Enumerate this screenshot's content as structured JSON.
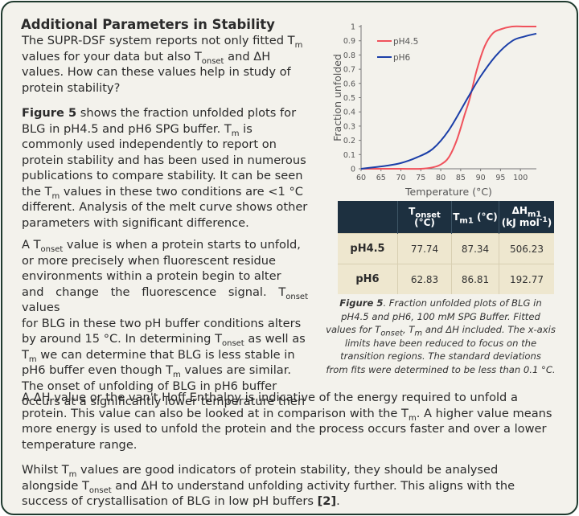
{
  "title": "Additional Parameters in Stability",
  "para1": {
    "l1a": "The SUPR-DSF system reports not only fitted T",
    "l1s": "m",
    "l2a": "values for your data but also T",
    "l2s": "onset",
    "l2b": " and ΔH",
    "l3": "values. How can these values help in study of",
    "l4": "protein stability?"
  },
  "para2": {
    "l1bold": "Figure 5",
    "l1": " shows the fraction unfolded plots for",
    "l2a": "BLG in pH4.5 and pH6 SPG buffer. T",
    "l2s": "m",
    "l2b": " is",
    "l3": "commonly used independently to report on",
    "l4": "protein stability and has been used in numerous",
    "l5": "publications to compare stability. It can be seen",
    "l6a": "the T",
    "l6s": "m",
    "l6b": " values in these two conditions are <1 °C",
    "l7": "different. Analysis of the melt curve shows other",
    "l8": "parameters with significant difference."
  },
  "para3": {
    "l1a": "A T",
    "l1s": "onset",
    "l1b": " value is when a protein starts to unfold,",
    "l2": "or more precisely when fluorescent residue",
    "l3": "environments within a protein begin to alter",
    "l4a": "and change the fluorescence signal. T",
    "l4s": "onset",
    "l4b": " values",
    "l5": "for BLG in these two pH buffer conditions alters",
    "l6a": "by around 15 °C. In determining T",
    "l6s": "onset",
    "l6b": " as well as",
    "l7a": "T",
    "l7s": "m",
    "l7b": " we can determine that BLG is less stable in",
    "l8": "pH6 buffer even though T",
    "l8s": "m",
    "l8b": " values are similar.",
    "l9": "The onset of unfolding of BLG in pH6 buffer",
    "l10": "occurs at a significantly lower temperature then"
  },
  "para4": {
    "l1": "A ΔH value or the van't Hoff Enthalpy is indicative of the energy required to unfold a",
    "l2a": "protein. This value can also be looked at in comparison with the T",
    "l2s": "m",
    "l2b": ". A higher value means",
    "l3": "more energy is used to unfold the protein and the process occurs faster and over a lower",
    "l4": "temperature range."
  },
  "para5": {
    "l1a": "Whilst T",
    "l1s": "m",
    "l1b": " values are good indicators of protein stability, they should be analysed",
    "l2a": "alongside T",
    "l2s": "onset",
    "l2b": " and ΔH to understand unfolding activity further. This aligns with the",
    "l3a": "success of crystallisation of BLG in low pH buffers ",
    "l3bold": "[2]",
    "l3b": "."
  },
  "table": {
    "h_onset_a": "T",
    "h_onset_s": "onset",
    "h_onset_b": " (°C)",
    "h_tm_a": "T",
    "h_tm_s": "m1",
    "h_tm_b": " (°C)",
    "h_dh_a": "ΔH",
    "h_dh_s": "m1",
    "h_dh_b": "(kJ mol",
    "h_dh_sup": "-1",
    "h_dh_c": ")",
    "rows": [
      {
        "label": "pH4.5",
        "tonset": "77.74",
        "tm": "87.34",
        "dh": "506.23"
      },
      {
        "label": "pH6",
        "tonset": "62.83",
        "tm": "86.81",
        "dh": "192.77"
      }
    ]
  },
  "caption": {
    "l1bold": "Figure 5",
    "l1": ". Fraction unfolded plots of BLG in",
    "l2": "pH4.5 and pH6, 100 mM SPG Buffer. Fitted",
    "l3a": "values for T",
    "l3s": "onset",
    "l3b": ", T",
    "l3s2": "m",
    "l3c": " and ΔH included. The x-axis",
    "l4": "limits have been reduced to focus on the",
    "l5": "transition regions. The standard deviations",
    "l6": "from fits were determined to be less than 0.1 °C."
  },
  "chart_data": {
    "type": "line",
    "xlabel": "Temperature (°C)",
    "ylabel": "Fraction unfolded",
    "xlim": [
      60,
      104
    ],
    "ylim": [
      0,
      1
    ],
    "x_ticks": [
      60,
      65,
      70,
      75,
      80,
      85,
      90,
      95,
      100
    ],
    "y_ticks": [
      0,
      0.1,
      0.2,
      0.3,
      0.4,
      0.5,
      0.6,
      0.7,
      0.8,
      0.9,
      1
    ],
    "y_tick_labels": [
      "0",
      "0.1",
      "0.2",
      "0.3",
      "0.4",
      "0.5",
      "0.6",
      "0.7",
      "0.8",
      "0.9",
      "1"
    ],
    "legend_position": "top-left",
    "series": [
      {
        "name": "pH4.5",
        "color": "#f0525c",
        "x": [
          60,
          70,
          75,
          78,
          80,
          82,
          84,
          86,
          87.34,
          89,
          91,
          93,
          95,
          98,
          101,
          104
        ],
        "y": [
          0,
          0.0,
          0.0,
          0.01,
          0.03,
          0.08,
          0.2,
          0.38,
          0.5,
          0.69,
          0.86,
          0.95,
          0.98,
          1.0,
          1.0,
          1.0
        ]
      },
      {
        "name": "pH6",
        "color": "#1b3fa8",
        "x": [
          60,
          63,
          66,
          70,
          74,
          78,
          82,
          86.81,
          90,
          94,
          98,
          101,
          104
        ],
        "y": [
          0.0,
          0.01,
          0.02,
          0.04,
          0.08,
          0.14,
          0.27,
          0.5,
          0.65,
          0.8,
          0.9,
          0.93,
          0.95
        ]
      }
    ]
  }
}
